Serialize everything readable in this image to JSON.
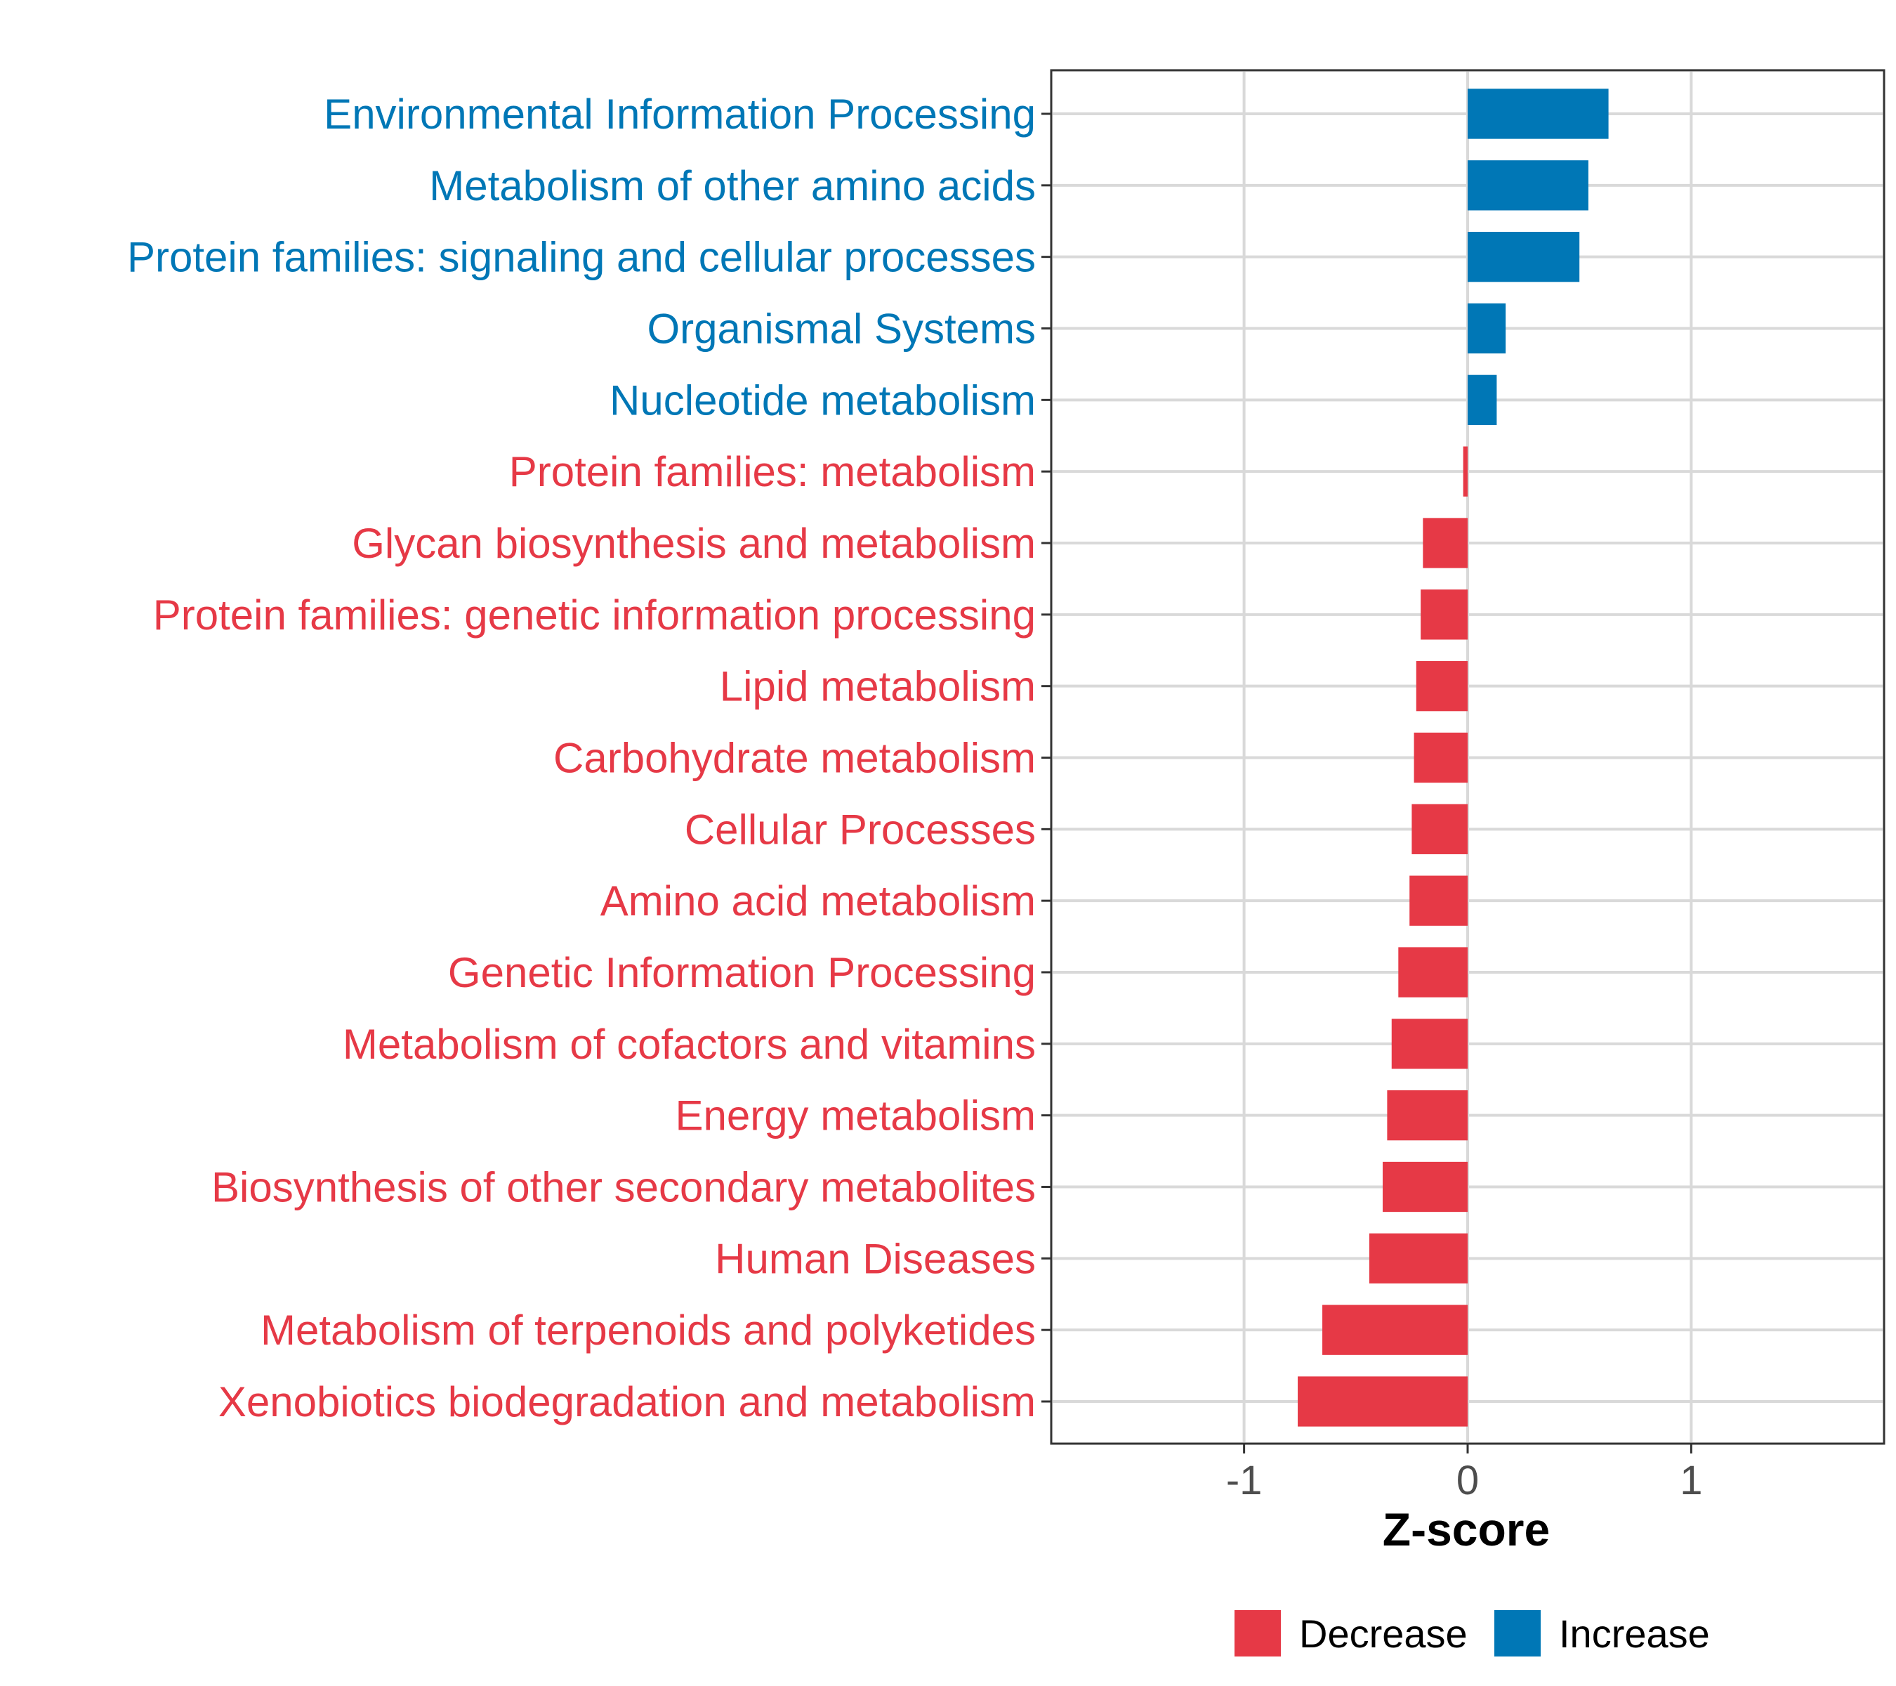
{
  "chart_data": {
    "type": "bar",
    "orientation": "horizontal",
    "title": "",
    "xlabel": "Z-score",
    "ylabel": "",
    "xlim": [
      -1.85,
      1.85
    ],
    "xticks": [
      -1,
      0,
      1
    ],
    "xtick_labels": [
      "-1",
      "0",
      "1"
    ],
    "grid": true,
    "legend_position": "bottom",
    "categories": [
      "Environmental Information Processing",
      "Metabolism of other amino acids",
      "Protein families: signaling and cellular processes",
      "Organismal Systems",
      "Nucleotide metabolism",
      "Protein families: metabolism",
      "Glycan biosynthesis and metabolism",
      "Protein families: genetic information processing",
      "Lipid metabolism",
      "Carbohydrate metabolism",
      "Cellular Processes",
      "Amino acid metabolism",
      "Genetic Information Processing",
      "Metabolism of cofactors and vitamins",
      "Energy metabolism",
      "Biosynthesis of other secondary metabolites",
      "Human Diseases",
      "Metabolism of terpenoids and polyketides",
      "Xenobiotics biodegradation and metabolism"
    ],
    "values": [
      0.63,
      0.54,
      0.5,
      0.17,
      0.13,
      -0.02,
      -0.2,
      -0.21,
      -0.23,
      -0.24,
      -0.25,
      -0.26,
      -0.31,
      -0.34,
      -0.36,
      -0.38,
      -0.44,
      -0.65,
      -0.76
    ],
    "groups": [
      "Increase",
      "Increase",
      "Increase",
      "Increase",
      "Increase",
      "Decrease",
      "Decrease",
      "Decrease",
      "Decrease",
      "Decrease",
      "Decrease",
      "Decrease",
      "Decrease",
      "Decrease",
      "Decrease",
      "Decrease",
      "Decrease",
      "Decrease",
      "Decrease"
    ],
    "legend": [
      {
        "name": "Decrease",
        "color": "#E63946"
      },
      {
        "name": "Increase",
        "color": "#0077B6"
      }
    ],
    "colors": {
      "Decrease": "#E63946",
      "Increase": "#0077B6"
    }
  }
}
